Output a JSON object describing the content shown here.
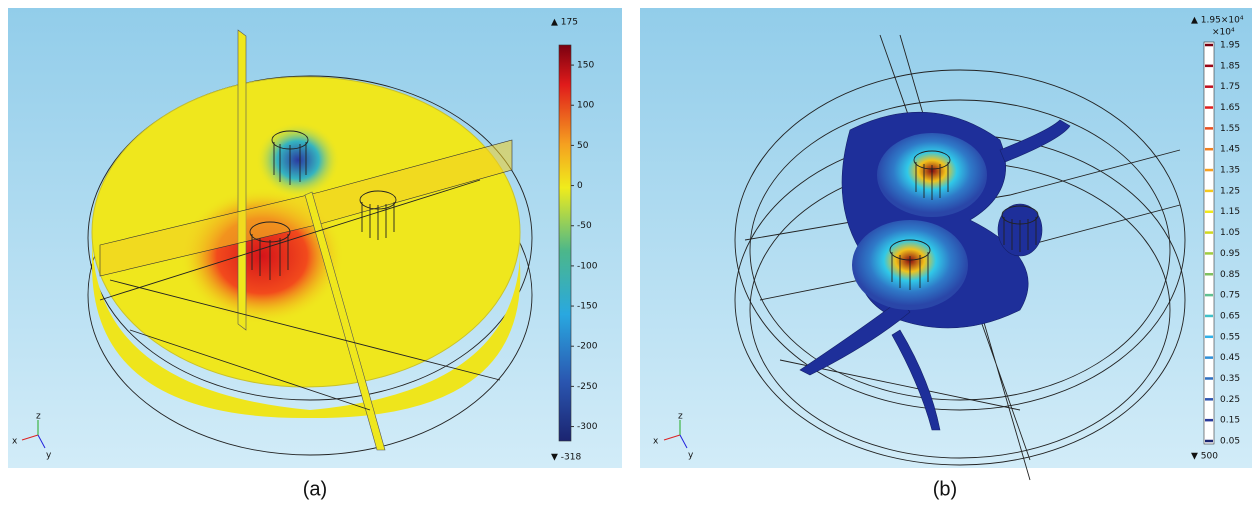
{
  "panels": [
    {
      "caption": "(a)",
      "colorbar": {
        "max_label": "▲ 175",
        "min_label": "▼ -318",
        "range": [
          -318,
          175
        ],
        "ticks": [
          150,
          100,
          50,
          0,
          -50,
          -100,
          -150,
          -200,
          -250,
          -300
        ]
      },
      "axes": {
        "x": "x",
        "y": "y",
        "z": "z"
      }
    },
    {
      "caption": "(b)",
      "colorbar": {
        "max_label": "▲ 1.95×10⁴",
        "unit": "×10⁴",
        "min_label": "▼ 500",
        "range": [
          0.05,
          1.95
        ],
        "ticks": [
          1.95,
          1.85,
          1.75,
          1.65,
          1.55,
          1.45,
          1.35,
          1.25,
          1.15,
          1.05,
          0.95,
          0.85,
          0.75,
          0.65,
          0.55,
          0.45,
          0.35,
          0.25,
          0.15,
          0.05
        ]
      },
      "axes": {
        "x": "x",
        "y": "y",
        "z": "z"
      }
    }
  ]
}
